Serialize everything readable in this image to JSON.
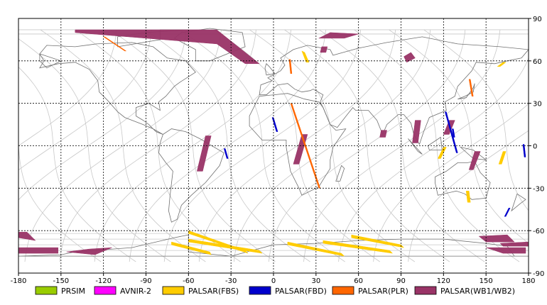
{
  "x_ticks": [
    "-180",
    "-150",
    "-120",
    "-90",
    "-60",
    "-30",
    "0",
    "30",
    "60",
    "90",
    "120",
    "150",
    "180"
  ],
  "x_tick_values": [
    -180,
    -150,
    -120,
    -90,
    -60,
    -30,
    0,
    30,
    60,
    90,
    120,
    150,
    180
  ],
  "y_ticks": [
    "90",
    "60",
    "30",
    "0",
    "-30",
    "-60",
    "-90"
  ],
  "y_tick_values": [
    90,
    60,
    30,
    0,
    -30,
    -60,
    -90
  ],
  "lon_range": [
    -180,
    180
  ],
  "lat_range": [
    -90,
    90
  ],
  "grid": "dotted",
  "legend": [
    {
      "label": "PRSIM",
      "color": "#99cc00"
    },
    {
      "label": "AVNIR-2",
      "color": "#ff00ff"
    },
    {
      "label": "PALSAR(FBS)",
      "color": "#ffcc00"
    },
    {
      "label": "PALSAR(FBD)",
      "color": "#0000cc"
    },
    {
      "label": "PALSAR(PLR)",
      "color": "#ff6600"
    },
    {
      "label": "PALSAR(WB1/WB2)",
      "color": "#993366"
    }
  ],
  "colors": {
    "orbit": "#c8c8c8",
    "coast": "#707070",
    "grid": "#000000",
    "frame": "#000000"
  },
  "swaths": {
    "wb": [
      [
        [
          -140,
          82
        ],
        [
          -40,
          82
        ],
        [
          -10,
          58
        ],
        [
          -20,
          58
        ],
        [
          -40,
          72
        ],
        [
          -140,
          80
        ]
      ],
      [
        [
          -48,
          7
        ],
        [
          -44,
          7
        ],
        [
          -50,
          -18
        ],
        [
          -54,
          -18
        ]
      ],
      [
        [
          20,
          8
        ],
        [
          24,
          8
        ],
        [
          18,
          -13
        ],
        [
          14,
          -13
        ]
      ],
      [
        [
          34,
          70
        ],
        [
          38,
          70
        ],
        [
          37,
          66
        ],
        [
          33,
          66
        ]
      ],
      [
        [
          40,
          80
        ],
        [
          60,
          79
        ],
        [
          50,
          76
        ],
        [
          32,
          76
        ]
      ],
      [
        [
          76,
          11
        ],
        [
          80,
          11
        ],
        [
          79,
          6
        ],
        [
          75,
          6
        ]
      ],
      [
        [
          94,
          59
        ],
        [
          100,
          62
        ],
        [
          97,
          66
        ],
        [
          92,
          63
        ]
      ],
      [
        [
          100,
          18
        ],
        [
          104,
          18
        ],
        [
          102,
          2
        ],
        [
          98,
          2
        ]
      ],
      [
        [
          124,
          18
        ],
        [
          128,
          18
        ],
        [
          124,
          8
        ],
        [
          120,
          8
        ]
      ],
      [
        [
          142,
          -4
        ],
        [
          146,
          -4
        ],
        [
          141,
          -17
        ],
        [
          138,
          -17
        ]
      ],
      [
        [
          -180,
          -61
        ],
        [
          -174,
          -61
        ],
        [
          -168,
          -67
        ],
        [
          -180,
          -65
        ]
      ],
      [
        [
          -180,
          -72
        ],
        [
          -152,
          -72
        ],
        [
          -152,
          -76
        ],
        [
          -180,
          -76
        ]
      ],
      [
        [
          -130,
          -73
        ],
        [
          -114,
          -72
        ],
        [
          -126,
          -77
        ],
        [
          -146,
          -75
        ]
      ],
      [
        [
          145,
          -64
        ],
        [
          165,
          -63
        ],
        [
          170,
          -68
        ],
        [
          150,
          -68
        ]
      ],
      [
        [
          150,
          -72
        ],
        [
          178,
          -72
        ],
        [
          178,
          -76
        ],
        [
          162,
          -76
        ]
      ],
      [
        [
          160,
          -69
        ],
        [
          180,
          -68
        ],
        [
          180,
          -71
        ],
        [
          162,
          -71
        ]
      ]
    ],
    "fbs": [
      [
        [
          -60,
          -60
        ],
        [
          -20,
          -74
        ],
        [
          -18,
          -76
        ],
        [
          -60,
          -62
        ]
      ],
      [
        [
          -72,
          -68
        ],
        [
          -45,
          -75
        ],
        [
          -44,
          -77
        ],
        [
          -72,
          -70
        ]
      ],
      [
        [
          -60,
          -66
        ],
        [
          -10,
          -74
        ],
        [
          -8,
          -76
        ],
        [
          -60,
          -68
        ]
      ],
      [
        [
          10,
          -68
        ],
        [
          48,
          -76
        ],
        [
          50,
          -78
        ],
        [
          10,
          -70
        ]
      ],
      [
        [
          35,
          -67
        ],
        [
          82,
          -74
        ],
        [
          84,
          -76
        ],
        [
          35,
          -69
        ]
      ],
      [
        [
          55,
          -63
        ],
        [
          90,
          -70
        ],
        [
          92,
          -72
        ],
        [
          55,
          -65
        ]
      ],
      [
        [
          20,
          67
        ],
        [
          22,
          66
        ],
        [
          25,
          59
        ],
        [
          23,
          59
        ]
      ],
      [
        [
          162,
          59
        ],
        [
          164,
          59
        ],
        [
          160,
          56
        ],
        [
          158,
          56
        ]
      ],
      [
        [
          162,
          -4
        ],
        [
          164,
          -4
        ],
        [
          161,
          -13
        ],
        [
          159,
          -13
        ]
      ],
      [
        [
          120,
          -1
        ],
        [
          122,
          -1
        ],
        [
          118,
          -9
        ],
        [
          116,
          -9
        ]
      ],
      [
        [
          136,
          -32
        ],
        [
          138,
          -32
        ],
        [
          139,
          -40
        ],
        [
          137,
          -40
        ]
      ]
    ],
    "fbd": [
      [
        [
          -1,
          20
        ],
        [
          0,
          20
        ],
        [
          3,
          10
        ],
        [
          2,
          10
        ]
      ],
      [
        [
          -35,
          -2
        ],
        [
          -34,
          -2
        ],
        [
          -32,
          -9
        ],
        [
          -33,
          -9
        ]
      ],
      [
        [
          121,
          24
        ],
        [
          122,
          24
        ],
        [
          130,
          -5
        ],
        [
          129,
          -5
        ]
      ],
      [
        [
          126,
          12
        ],
        [
          127,
          12
        ],
        [
          128,
          6
        ],
        [
          127,
          6
        ]
      ],
      [
        [
          176,
          1
        ],
        [
          177,
          1
        ],
        [
          178,
          -8
        ],
        [
          177,
          -8
        ]
      ],
      [
        [
          166,
          -44
        ],
        [
          167,
          -44
        ],
        [
          164,
          -50
        ],
        [
          163,
          -50
        ]
      ]
    ],
    "plr": [
      [
        [
          -120,
          77
        ],
        [
          -119,
          77
        ],
        [
          -104,
          67
        ],
        [
          -105,
          67
        ]
      ],
      [
        [
          12,
          30
        ],
        [
          13,
          30
        ],
        [
          33,
          -30
        ],
        [
          32,
          -30
        ]
      ],
      [
        [
          11,
          61
        ],
        [
          12,
          61
        ],
        [
          13,
          51
        ],
        [
          12,
          51
        ]
      ],
      [
        [
          138,
          47
        ],
        [
          139,
          47
        ],
        [
          141,
          35
        ],
        [
          140,
          35
        ]
      ]
    ]
  },
  "land": [
    [
      [
        -165,
        65
      ],
      [
        -160,
        71
      ],
      [
        -140,
        70
      ],
      [
        -125,
        72
      ],
      [
        -100,
        73
      ],
      [
        -85,
        70
      ],
      [
        -75,
        62
      ],
      [
        -62,
        60
      ],
      [
        -55,
        52
      ],
      [
        -66,
        45
      ],
      [
        -70,
        42
      ],
      [
        -76,
        35
      ],
      [
        -81,
        31
      ],
      [
        -80,
        25
      ],
      [
        -88,
        30
      ],
      [
        -97,
        27
      ],
      [
        -97,
        21
      ],
      [
        -92,
        18
      ],
      [
        -88,
        15
      ],
      [
        -83,
        10
      ],
      [
        -78,
        8
      ],
      [
        -85,
        12
      ],
      [
        -92,
        15
      ],
      [
        -105,
        20
      ],
      [
        -110,
        24
      ],
      [
        -117,
        32
      ],
      [
        -123,
        38
      ],
      [
        -124,
        46
      ],
      [
        -130,
        54
      ],
      [
        -140,
        59
      ],
      [
        -152,
        58
      ],
      [
        -165,
        55
      ],
      [
        -162,
        60
      ],
      [
        -165,
        65
      ]
    ],
    [
      [
        -78,
        8
      ],
      [
        -72,
        12
      ],
      [
        -62,
        10
      ],
      [
        -52,
        5
      ],
      [
        -35,
        -5
      ],
      [
        -38,
        -14
      ],
      [
        -48,
        -26
      ],
      [
        -58,
        -35
      ],
      [
        -65,
        -42
      ],
      [
        -68,
        -52
      ],
      [
        -72,
        -54
      ],
      [
        -74,
        -46
      ],
      [
        -73,
        -35
      ],
      [
        -71,
        -18
      ],
      [
        -76,
        -12
      ],
      [
        -81,
        -5
      ],
      [
        -80,
        2
      ],
      [
        -78,
        8
      ]
    ],
    [
      [
        -55,
        60
      ],
      [
        -45,
        60
      ],
      [
        -20,
        70
      ],
      [
        -22,
        80
      ],
      [
        -45,
        83
      ],
      [
        -65,
        80
      ],
      [
        -70,
        76
      ],
      [
        -55,
        68
      ],
      [
        -55,
        60
      ]
    ],
    [
      [
        -10,
        36
      ],
      [
        -9,
        43
      ],
      [
        -1,
        46
      ],
      [
        -4,
        48
      ],
      [
        5,
        53
      ],
      [
        8,
        57
      ],
      [
        5,
        62
      ],
      [
        14,
        68
      ],
      [
        24,
        71
      ],
      [
        40,
        68
      ],
      [
        42,
        64
      ],
      [
        60,
        69
      ],
      [
        80,
        73
      ],
      [
        105,
        77
      ],
      [
        130,
        72
      ],
      [
        160,
        70
      ],
      [
        180,
        68
      ],
      [
        175,
        62
      ],
      [
        165,
        60
      ],
      [
        156,
        58
      ],
      [
        143,
        59
      ],
      [
        140,
        53
      ],
      [
        130,
        42
      ],
      [
        128,
        35
      ],
      [
        121,
        31
      ],
      [
        122,
        25
      ],
      [
        110,
        20
      ],
      [
        106,
        10
      ],
      [
        103,
        1
      ],
      [
        99,
        8
      ],
      [
        97,
        16
      ],
      [
        92,
        22
      ],
      [
        88,
        22
      ],
      [
        80,
        15
      ],
      [
        77,
        8
      ],
      [
        73,
        18
      ],
      [
        67,
        25
      ],
      [
        58,
        25
      ],
      [
        56,
        27
      ],
      [
        52,
        22
      ],
      [
        45,
        13
      ],
      [
        40,
        15
      ],
      [
        35,
        27
      ],
      [
        33,
        31
      ],
      [
        35,
        36
      ],
      [
        28,
        40
      ],
      [
        26,
        39
      ],
      [
        20,
        38
      ],
      [
        15,
        40
      ],
      [
        10,
        44
      ],
      [
        3,
        43
      ],
      [
        -5,
        36
      ],
      [
        -10,
        36
      ]
    ],
    [
      [
        -17,
        21
      ],
      [
        -10,
        35
      ],
      [
        10,
        37
      ],
      [
        22,
        33
      ],
      [
        32,
        31
      ],
      [
        35,
        27
      ],
      [
        40,
        15
      ],
      [
        44,
        11
      ],
      [
        51,
        12
      ],
      [
        42,
        -1
      ],
      [
        40,
        -10
      ],
      [
        40,
        -16
      ],
      [
        35,
        -24
      ],
      [
        32,
        -29
      ],
      [
        20,
        -35
      ],
      [
        18,
        -30
      ],
      [
        12,
        -18
      ],
      [
        9,
        -1
      ],
      [
        9,
        4
      ],
      [
        -8,
        4
      ],
      [
        -17,
        14
      ],
      [
        -17,
        21
      ]
    ],
    [
      [
        114,
        -22
      ],
      [
        122,
        -18
      ],
      [
        130,
        -12
      ],
      [
        137,
        -12
      ],
      [
        142,
        -11
      ],
      [
        146,
        -19
      ],
      [
        153,
        -26
      ],
      [
        150,
        -37
      ],
      [
        140,
        -38
      ],
      [
        135,
        -34
      ],
      [
        129,
        -32
      ],
      [
        116,
        -35
      ],
      [
        114,
        -26
      ],
      [
        114,
        -22
      ]
    ],
    [
      [
        44,
        -25
      ],
      [
        48,
        -14
      ],
      [
        50,
        -16
      ],
      [
        47,
        -25
      ],
      [
        44,
        -25
      ]
    ],
    [
      [
        -5,
        50
      ],
      [
        1,
        51
      ],
      [
        -3,
        56
      ],
      [
        -5,
        58
      ],
      [
        -6,
        55
      ],
      [
        -5,
        50
      ]
    ],
    [
      [
        -165,
        65
      ],
      [
        -150,
        60
      ],
      [
        -160,
        55
      ],
      [
        -165,
        60
      ],
      [
        -165,
        65
      ]
    ],
    [
      [
        130,
        33
      ],
      [
        135,
        35
      ],
      [
        141,
        38
      ],
      [
        142,
        44
      ],
      [
        141,
        41
      ],
      [
        136,
        34
      ],
      [
        130,
        33
      ]
    ],
    [
      [
        95,
        5
      ],
      [
        105,
        -6
      ],
      [
        102,
        -4
      ],
      [
        95,
        5
      ]
    ],
    [
      [
        109,
        0
      ],
      [
        118,
        6
      ],
      [
        119,
        -3
      ],
      [
        110,
        -3
      ],
      [
        109,
        0
      ]
    ],
    [
      [
        132,
        -1
      ],
      [
        141,
        -3
      ],
      [
        150,
        -10
      ],
      [
        141,
        -9
      ],
      [
        132,
        -1
      ]
    ],
    [
      [
        172,
        -34
      ],
      [
        178,
        -38
      ],
      [
        174,
        -41
      ],
      [
        168,
        -46
      ],
      [
        172,
        -34
      ]
    ],
    [
      [
        -110,
        70
      ],
      [
        -80,
        75
      ],
      [
        -80,
        82
      ],
      [
        -60,
        82
      ],
      [
        -90,
        80
      ],
      [
        -110,
        77
      ],
      [
        -110,
        70
      ]
    ],
    [
      [
        -180,
        -78
      ],
      [
        -150,
        -77
      ],
      [
        -140,
        -75
      ],
      [
        -100,
        -72
      ],
      [
        -70,
        -65
      ],
      [
        -60,
        -63
      ],
      [
        -60,
        -75
      ],
      [
        -30,
        -78
      ],
      [
        0,
        -70
      ],
      [
        30,
        -69
      ],
      [
        60,
        -67
      ],
      [
        90,
        -66
      ],
      [
        120,
        -66
      ],
      [
        150,
        -69
      ],
      [
        165,
        -71
      ],
      [
        170,
        -78
      ],
      [
        180,
        -78
      ]
    ]
  ]
}
